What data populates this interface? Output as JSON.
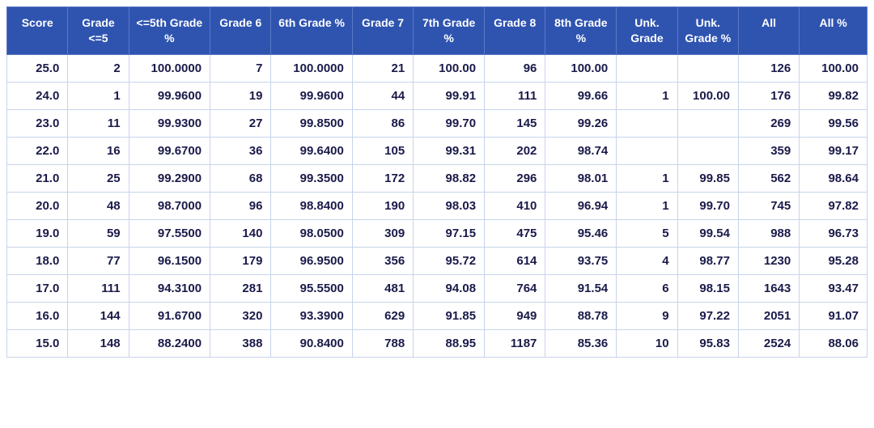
{
  "table": {
    "header_bg": "#2f54b0",
    "header_fg": "#ffffff",
    "cell_border": "#c8d4ea",
    "cell_fg": "#1a1a4a",
    "font_family": "Verdana, Geneva, sans-serif",
    "header_fontsize": 14,
    "cell_fontsize": 15,
    "columns": [
      {
        "key": "score",
        "label": "Score",
        "width": 72
      },
      {
        "key": "g5",
        "label": "Grade <=5",
        "width": 72
      },
      {
        "key": "g5pct",
        "label": "<=5th Grade %",
        "width": 96
      },
      {
        "key": "g6",
        "label": "Grade 6",
        "width": 72
      },
      {
        "key": "g6pct",
        "label": "6th Grade %",
        "width": 96
      },
      {
        "key": "g7",
        "label": "Grade 7",
        "width": 72
      },
      {
        "key": "g7pct",
        "label": "7th Grade %",
        "width": 84
      },
      {
        "key": "g8",
        "label": "Grade 8",
        "width": 72
      },
      {
        "key": "g8pct",
        "label": "8th Grade %",
        "width": 84
      },
      {
        "key": "unk",
        "label": "Unk. Grade",
        "width": 72
      },
      {
        "key": "unkpct",
        "label": "Unk. Grade %",
        "width": 72
      },
      {
        "key": "all",
        "label": "All",
        "width": 72
      },
      {
        "key": "allpct",
        "label": "All %",
        "width": 80
      }
    ],
    "rows": [
      [
        "25.0",
        "2",
        "100.0000",
        "7",
        "100.0000",
        "21",
        "100.00",
        "96",
        "100.00",
        "",
        "",
        "126",
        "100.00"
      ],
      [
        "24.0",
        "1",
        "99.9600",
        "19",
        "99.9600",
        "44",
        "99.91",
        "111",
        "99.66",
        "1",
        "100.00",
        "176",
        "99.82"
      ],
      [
        "23.0",
        "11",
        "99.9300",
        "27",
        "99.8500",
        "86",
        "99.70",
        "145",
        "99.26",
        "",
        "",
        "269",
        "99.56"
      ],
      [
        "22.0",
        "16",
        "99.6700",
        "36",
        "99.6400",
        "105",
        "99.31",
        "202",
        "98.74",
        "",
        "",
        "359",
        "99.17"
      ],
      [
        "21.0",
        "25",
        "99.2900",
        "68",
        "99.3500",
        "172",
        "98.82",
        "296",
        "98.01",
        "1",
        "99.85",
        "562",
        "98.64"
      ],
      [
        "20.0",
        "48",
        "98.7000",
        "96",
        "98.8400",
        "190",
        "98.03",
        "410",
        "96.94",
        "1",
        "99.70",
        "745",
        "97.82"
      ],
      [
        "19.0",
        "59",
        "97.5500",
        "140",
        "98.0500",
        "309",
        "97.15",
        "475",
        "95.46",
        "5",
        "99.54",
        "988",
        "96.73"
      ],
      [
        "18.0",
        "77",
        "96.1500",
        "179",
        "96.9500",
        "356",
        "95.72",
        "614",
        "93.75",
        "4",
        "98.77",
        "1230",
        "95.28"
      ],
      [
        "17.0",
        "111",
        "94.3100",
        "281",
        "95.5500",
        "481",
        "94.08",
        "764",
        "91.54",
        "6",
        "98.15",
        "1643",
        "93.47"
      ],
      [
        "16.0",
        "144",
        "91.6700",
        "320",
        "93.3900",
        "629",
        "91.85",
        "949",
        "88.78",
        "9",
        "97.22",
        "2051",
        "91.07"
      ],
      [
        "15.0",
        "148",
        "88.2400",
        "388",
        "90.8400",
        "788",
        "88.95",
        "1187",
        "85.36",
        "10",
        "95.83",
        "2524",
        "88.06"
      ]
    ]
  }
}
